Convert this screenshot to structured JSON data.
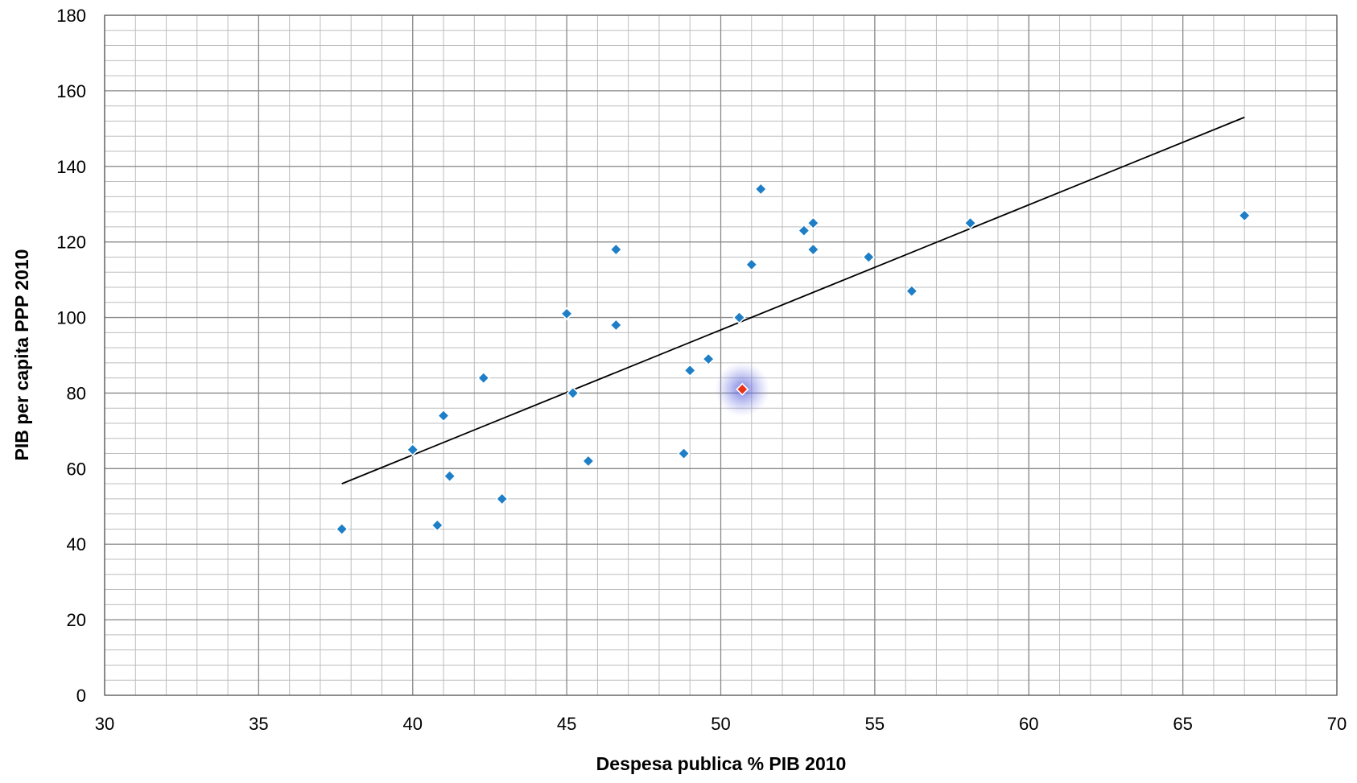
{
  "chart_data": {
    "type": "scatter",
    "title": "",
    "xlabel": "Despesa publica % PIB 2010",
    "ylabel": "PIB per capita PPP 2010",
    "xlim": [
      30,
      70
    ],
    "ylim": [
      0,
      180
    ],
    "x_ticks": [
      30,
      35,
      40,
      45,
      50,
      55,
      60,
      65,
      70
    ],
    "y_ticks": [
      0,
      20,
      40,
      60,
      80,
      100,
      120,
      140,
      160,
      180
    ],
    "grid": true,
    "legend": "none",
    "series": [
      {
        "color": "#1F7FC6",
        "marker": "diamond",
        "points": [
          {
            "x": 37.7,
            "y": 44
          },
          {
            "x": 40.0,
            "y": 65
          },
          {
            "x": 40.8,
            "y": 45
          },
          {
            "x": 41.0,
            "y": 74
          },
          {
            "x": 41.2,
            "y": 58
          },
          {
            "x": 42.3,
            "y": 84
          },
          {
            "x": 42.9,
            "y": 52
          },
          {
            "x": 45.0,
            "y": 101
          },
          {
            "x": 45.2,
            "y": 80
          },
          {
            "x": 45.7,
            "y": 62
          },
          {
            "x": 46.6,
            "y": 118
          },
          {
            "x": 46.6,
            "y": 98
          },
          {
            "x": 48.8,
            "y": 64
          },
          {
            "x": 49.0,
            "y": 86
          },
          {
            "x": 49.6,
            "y": 89
          },
          {
            "x": 50.6,
            "y": 100
          },
          {
            "x": 51.0,
            "y": 114
          },
          {
            "x": 51.3,
            "y": 134
          },
          {
            "x": 52.7,
            "y": 123
          },
          {
            "x": 53.0,
            "y": 125
          },
          {
            "x": 53.0,
            "y": 118
          },
          {
            "x": 54.8,
            "y": 116
          },
          {
            "x": 56.2,
            "y": 107
          },
          {
            "x": 58.1,
            "y": 125
          },
          {
            "x": 67.0,
            "y": 127
          }
        ]
      },
      {
        "color": "#E8331C",
        "marker": "diamond",
        "highlight": true,
        "points": [
          {
            "x": 50.7,
            "y": 81
          }
        ]
      }
    ],
    "trendline": {
      "color": "#000000",
      "points": [
        {
          "x": 37.7,
          "y": 56
        },
        {
          "x": 67.0,
          "y": 153
        }
      ]
    }
  }
}
